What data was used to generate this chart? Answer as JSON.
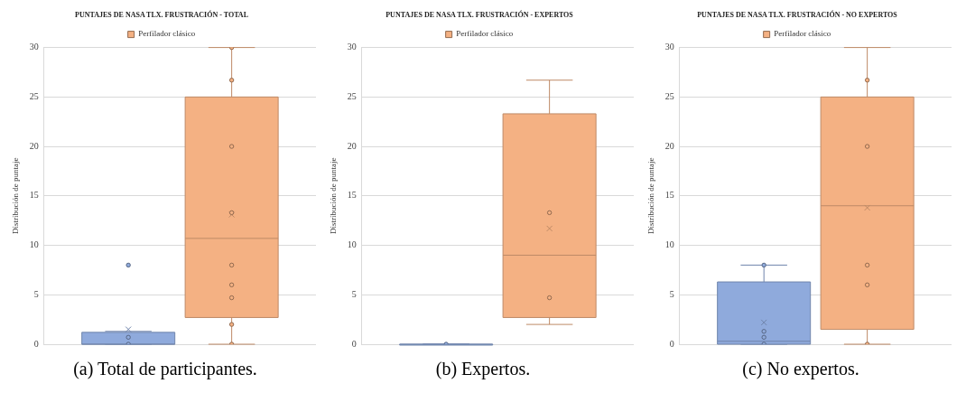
{
  "chart_data": [
    {
      "type": "box",
      "title": "PUNTAJES DE NASA TLX. FRUSTRACIÓN - TOTAL",
      "ylabel": "Distribución de puntaje",
      "categories": [
        null
      ],
      "ylim": [
        0,
        30
      ],
      "yticks": [
        0,
        5,
        10,
        15,
        20,
        25,
        30
      ],
      "grid": "y",
      "legend": "top",
      "annotations": [
        "(a) Total de participantes."
      ],
      "series": [
        {
          "color": "#8faadc",
          "boxes": [
            {
              "low": 0,
              "q1": 0,
              "median": 0,
              "q3": 1.2,
              "high": 1.3,
              "mean": 1.5,
              "outliers": [
                0,
                0.7,
                8
              ]
            }
          ]
        },
        {
          "name": "Perfilador clásico",
          "color": "#f4b183",
          "boxes": [
            {
              "low": 0,
              "q1": 2.7,
              "median": 10.7,
              "q3": 25,
              "high": 30,
              "mean": 13.1,
              "outliers": [
                0,
                2,
                4.7,
                6,
                8,
                13.3,
                20,
                26.7,
                30
              ]
            }
          ]
        }
      ]
    },
    {
      "type": "box",
      "title": "PUNTAJES DE NASA TLX. FRUSTRACIÓN - EXPERTOS",
      "ylabel": "Distribución de puntaje",
      "categories": [
        null
      ],
      "ylim": [
        0,
        30
      ],
      "yticks": [
        0,
        5,
        10,
        15,
        20,
        25,
        30
      ],
      "grid": "y",
      "legend": "top",
      "annotations": [
        "(b) Expertos."
      ],
      "series": [
        {
          "color": "#8faadc",
          "boxes": [
            {
              "low": 0,
              "q1": 0,
              "median": 0,
              "q3": 0,
              "high": 0,
              "outliers": [
                0
              ]
            }
          ]
        },
        {
          "name": "Perfilador clásico",
          "color": "#f4b183",
          "boxes": [
            {
              "low": 2,
              "q1": 2.7,
              "median": 9,
              "q3": 23.3,
              "high": 26.7,
              "mean": 11.7,
              "outliers": [
                4.7,
                13.3
              ]
            }
          ]
        }
      ]
    },
    {
      "type": "box",
      "title": "PUNTAJES DE NASA TLX. FRUSTRACIÓN - NO EXPERTOS",
      "ylabel": "Distribución de puntaje",
      "categories": [
        null
      ],
      "ylim": [
        0,
        30
      ],
      "yticks": [
        0,
        5,
        10,
        15,
        20,
        25,
        30
      ],
      "grid": "y",
      "legend": "top",
      "annotations": [
        "(c) No expertos."
      ],
      "series": [
        {
          "color": "#8faadc",
          "boxes": [
            {
              "low": 0,
              "q1": 0,
              "median": 0.3,
              "q3": 6.3,
              "high": 8,
              "mean": 2.2,
              "outliers": [
                0,
                0.7,
                1.3,
                8
              ]
            }
          ]
        },
        {
          "name": "Perfilador clásico",
          "color": "#f4b183",
          "boxes": [
            {
              "low": 0,
              "q1": 1.5,
              "median": 14,
              "q3": 25,
              "high": 30,
              "mean": 13.8,
              "outliers": [
                0,
                6,
                8,
                20,
                26.7
              ]
            }
          ]
        }
      ]
    }
  ]
}
